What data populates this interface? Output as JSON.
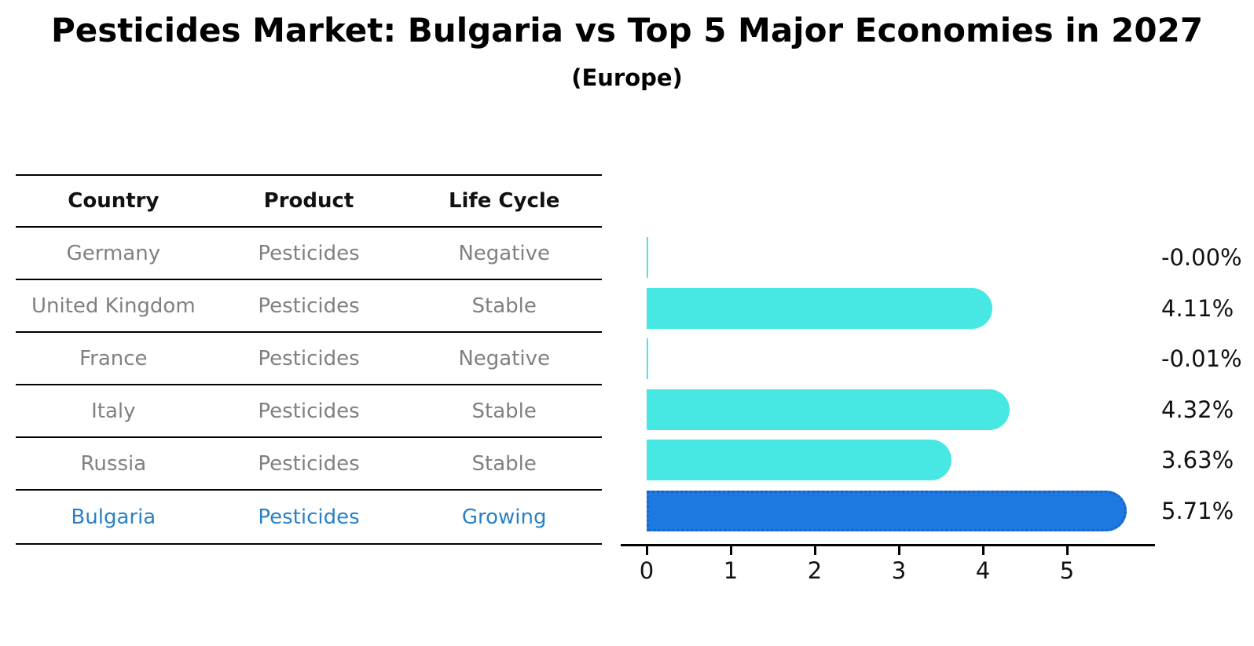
{
  "header": {
    "title": "Pesticides Market: Bulgaria vs Top 5 Major Economies in 2027",
    "subtitle": "(Europe)"
  },
  "table": {
    "columns": [
      "Country",
      "Product",
      "Life Cycle"
    ],
    "rows": [
      {
        "country": "Germany",
        "product": "Pesticides",
        "life_cycle": "Negative",
        "highlight": false
      },
      {
        "country": "United Kingdom",
        "product": "Pesticides",
        "life_cycle": "Stable",
        "highlight": false
      },
      {
        "country": "France",
        "product": "Pesticides",
        "life_cycle": "Negative",
        "highlight": false
      },
      {
        "country": "Italy",
        "product": "Pesticides",
        "life_cycle": "Stable",
        "highlight": false
      },
      {
        "country": "Russia",
        "product": "Pesticides",
        "life_cycle": "Stable",
        "highlight": false
      },
      {
        "country": "Bulgaria",
        "product": "Pesticides",
        "life_cycle": "Growing",
        "highlight": true
      }
    ]
  },
  "chart_data": {
    "type": "bar",
    "orientation": "horizontal",
    "title": "Pesticides Market: Bulgaria vs Top 5 Major Economies in 2027 (Europe)",
    "categories": [
      "Germany",
      "United Kingdom",
      "France",
      "Italy",
      "Russia",
      "Bulgaria"
    ],
    "values": [
      -0.0,
      4.11,
      -0.01,
      4.32,
      3.63,
      5.71
    ],
    "value_labels": [
      "-0.00%",
      "4.11%",
      "-0.01%",
      "4.32%",
      "3.63%",
      "5.71%"
    ],
    "x_ticks": [
      0,
      1,
      2,
      3,
      4,
      5
    ],
    "xlim": [
      0,
      6.05
    ],
    "xlabel": "",
    "ylabel": "",
    "grid": false,
    "legend": false,
    "bar_color": "#47E8E3",
    "highlight_bar_color": "#1E78E1",
    "highlight_index": 5
  },
  "colors": {
    "bar": "#47E8E3",
    "highlight_bar": "#1E78E1",
    "highlight_bar_border": "#1565C8",
    "highlight_text": "#2980C8",
    "table_text": "#808080",
    "header_text": "#111111",
    "axis": "#000000"
  }
}
